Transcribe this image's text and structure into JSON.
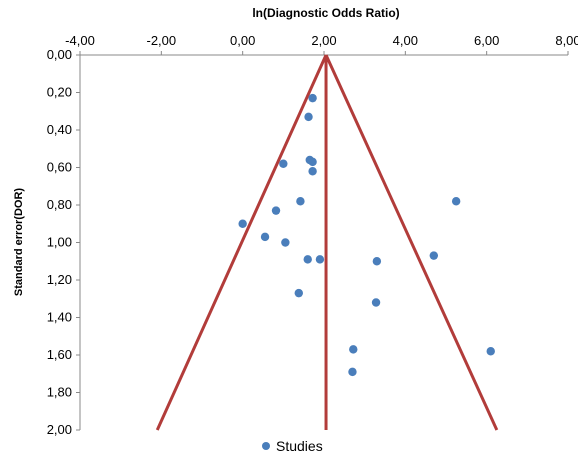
{
  "chart_data": {
    "type": "scatter",
    "title": "ln(Diagnostic Odds Ratio)",
    "xlabel": "ln(Diagnostic Odds Ratio)",
    "ylabel": "Standard error(DOR)",
    "xlim": [
      -4,
      8
    ],
    "ylim": [
      0,
      2
    ],
    "y_reversed": true,
    "x_axis_position": "top",
    "x_ticks": [
      "-4,00",
      "-2,00",
      "0,00",
      "2,00",
      "4,00",
      "6,00",
      "8,00"
    ],
    "y_ticks": [
      "0,00",
      "0,20",
      "0,40",
      "0,60",
      "0,80",
      "1,00",
      "1,20",
      "1,40",
      "1,60",
      "1,80",
      "2,00"
    ],
    "grid": false,
    "legend_position": "bottom",
    "series": [
      {
        "name": "Studies",
        "color": "#4a7ebb",
        "points": [
          {
            "x": 1.72,
            "y": 0.23
          },
          {
            "x": 1.62,
            "y": 0.33
          },
          {
            "x": 1.65,
            "y": 0.56
          },
          {
            "x": 1.72,
            "y": 0.57
          },
          {
            "x": 1.0,
            "y": 0.58
          },
          {
            "x": 1.72,
            "y": 0.62
          },
          {
            "x": 1.42,
            "y": 0.78
          },
          {
            "x": 5.25,
            "y": 0.78
          },
          {
            "x": 0.82,
            "y": 0.83
          },
          {
            "x": 0.0,
            "y": 0.9
          },
          {
            "x": 0.55,
            "y": 0.97
          },
          {
            "x": 1.05,
            "y": 1.0
          },
          {
            "x": 4.7,
            "y": 1.07
          },
          {
            "x": 1.6,
            "y": 1.09
          },
          {
            "x": 1.9,
            "y": 1.09
          },
          {
            "x": 3.3,
            "y": 1.1
          },
          {
            "x": 1.38,
            "y": 1.27
          },
          {
            "x": 3.28,
            "y": 1.32
          },
          {
            "x": 2.72,
            "y": 1.57
          },
          {
            "x": 6.1,
            "y": 1.58
          },
          {
            "x": 2.7,
            "y": 1.69
          }
        ]
      }
    ],
    "funnel": {
      "color": "#b23c3a",
      "center_x": 2.05,
      "apex_y": 0.0,
      "bottom_y": 2.0,
      "bottom_left_x": -2.1,
      "bottom_right_x": 6.25
    }
  }
}
